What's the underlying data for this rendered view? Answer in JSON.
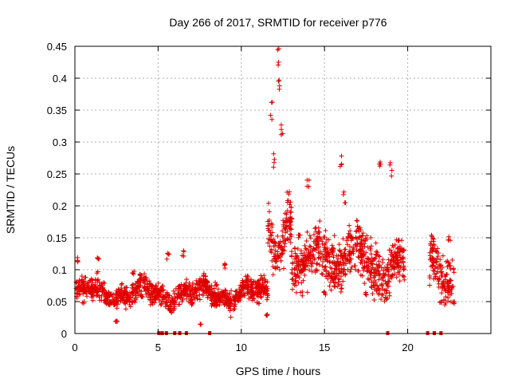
{
  "chart_data": {
    "type": "scatter",
    "title": "Day 266 of 2017, SRMTID for receiver p776",
    "xlabel": "GPS time / hours",
    "ylabel": "SRMTID / TECUs",
    "xlim": [
      0,
      25
    ],
    "ylim": [
      0,
      0.45
    ],
    "xticks": [
      0,
      5,
      10,
      15,
      20
    ],
    "xtick_labels": [
      "0",
      "5",
      "10",
      "15",
      "20"
    ],
    "yticks": [
      0,
      0.05,
      0.1,
      0.15,
      0.2,
      0.25,
      0.3,
      0.35,
      0.4,
      0.45
    ],
    "ytick_labels": [
      "0",
      "0.05",
      "0.1",
      "0.15",
      "0.2",
      "0.25",
      "0.3",
      "0.35",
      "0.4",
      "0.45"
    ],
    "grid": true,
    "marker": "+",
    "color": "#ff0000",
    "marker_color": "#e00000",
    "data_coverage_hours": [
      0,
      22.8
    ],
    "data_gap_hours": [
      19.8,
      21.3
    ],
    "zero_markers_x": [
      5.05,
      5.25,
      5.5,
      6.0,
      6.3,
      6.7,
      8.1,
      18.8,
      21.2,
      21.6,
      22.0
    ],
    "series": [
      {
        "name": "SRMTID",
        "description_points": [
          {
            "x": 0.0,
            "y": 0.07
          },
          {
            "x": 0.2,
            "y": 0.12
          },
          {
            "x": 0.5,
            "y": 0.05
          },
          {
            "x": 1.0,
            "y": 0.085
          },
          {
            "x": 1.4,
            "y": 0.12
          },
          {
            "x": 2.0,
            "y": 0.06
          },
          {
            "x": 2.5,
            "y": 0.02
          },
          {
            "x": 3.0,
            "y": 0.05
          },
          {
            "x": 3.5,
            "y": 0.1
          },
          {
            "x": 4.0,
            "y": 0.06
          },
          {
            "x": 5.0,
            "y": 0.06
          },
          {
            "x": 5.6,
            "y": 0.125
          },
          {
            "x": 6.5,
            "y": 0.13
          },
          {
            "x": 7.0,
            "y": 0.05
          },
          {
            "x": 7.5,
            "y": 0.015
          },
          {
            "x": 8.5,
            "y": 0.08
          },
          {
            "x": 9.0,
            "y": 0.11
          },
          {
            "x": 10.0,
            "y": 0.06
          },
          {
            "x": 11.0,
            "y": 0.05
          },
          {
            "x": 11.5,
            "y": 0.03
          },
          {
            "x": 11.8,
            "y": 0.36
          },
          {
            "x": 12.0,
            "y": 0.28
          },
          {
            "x": 12.2,
            "y": 0.443
          },
          {
            "x": 12.3,
            "y": 0.4
          },
          {
            "x": 12.4,
            "y": 0.33
          },
          {
            "x": 12.8,
            "y": 0.22
          },
          {
            "x": 13.0,
            "y": 0.19
          },
          {
            "x": 13.5,
            "y": 0.16
          },
          {
            "x": 14.0,
            "y": 0.245
          },
          {
            "x": 14.5,
            "y": 0.1
          },
          {
            "x": 15.0,
            "y": 0.065
          },
          {
            "x": 15.5,
            "y": 0.09
          },
          {
            "x": 16.0,
            "y": 0.28
          },
          {
            "x": 16.2,
            "y": 0.22
          },
          {
            "x": 16.5,
            "y": 0.13
          },
          {
            "x": 17.0,
            "y": 0.18
          },
          {
            "x": 17.5,
            "y": 0.065
          },
          {
            "x": 18.0,
            "y": 0.08
          },
          {
            "x": 18.3,
            "y": 0.275
          },
          {
            "x": 18.8,
            "y": 0.1
          },
          {
            "x": 19.0,
            "y": 0.265
          },
          {
            "x": 19.5,
            "y": 0.11
          },
          {
            "x": 21.5,
            "y": 0.155
          },
          {
            "x": 22.0,
            "y": 0.05
          },
          {
            "x": 22.5,
            "y": 0.155
          },
          {
            "x": 22.8,
            "y": 0.05
          }
        ]
      }
    ]
  }
}
